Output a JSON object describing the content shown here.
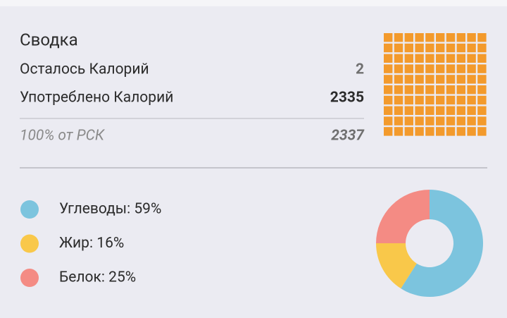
{
  "summary": {
    "title": "Сводка",
    "rows": [
      {
        "label": "Осталось Калорий",
        "value": "2"
      },
      {
        "label": "Употреблено Калорий",
        "value": "2335"
      },
      {
        "label": "100% от РСК",
        "value": "2337"
      }
    ],
    "waffle": {
      "filled": 100,
      "total": 100,
      "color": "#f39a2c"
    }
  },
  "chart_data": {
    "type": "pie",
    "labels": [
      "Углеводы: 59%",
      "Жир: 16%",
      "Белок: 25%"
    ],
    "values": [
      59,
      16,
      25
    ],
    "colors": [
      "#7cc4de",
      "#f9c84a",
      "#f48b84"
    ],
    "donut": true
  }
}
